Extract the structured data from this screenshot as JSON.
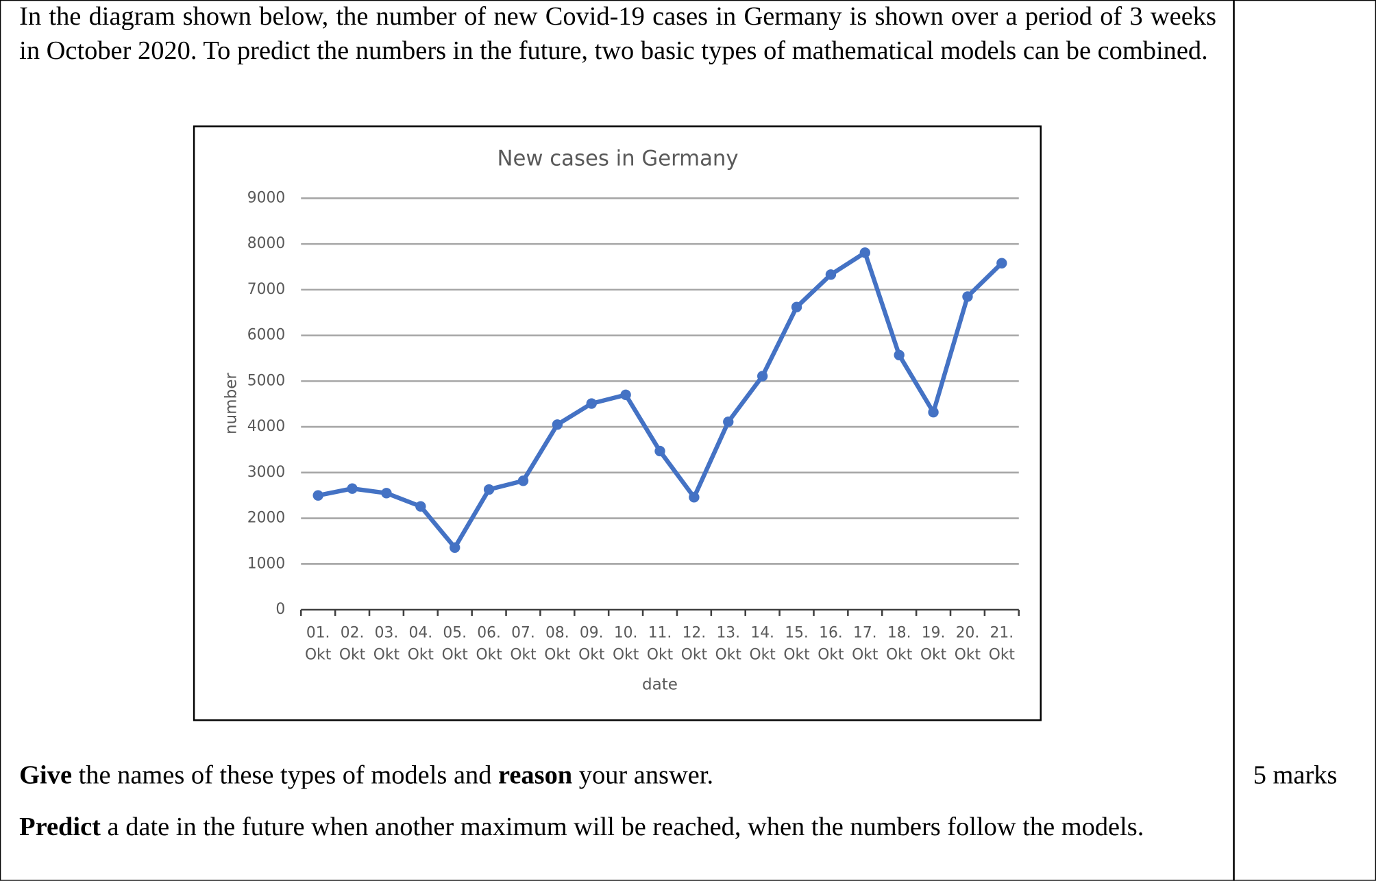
{
  "intro": "In the diagram shown below, the number of new Covid-19 cases in Germany is shown over a period of 3 weeks in October 2020.  To predict the numbers in the future, two basic types of mathematical models can be combined.",
  "chart_data": {
    "type": "line",
    "title": "New cases in Germany",
    "x_label": "date",
    "y_label": "number",
    "categories": [
      "01. Okt",
      "02. Okt",
      "03. Okt",
      "04. Okt",
      "05. Okt",
      "06. Okt",
      "07. Okt",
      "08. Okt",
      "09. Okt",
      "10. Okt",
      "11. Okt",
      "12. Okt",
      "13. Okt",
      "14. Okt",
      "15. Okt",
      "16. Okt",
      "17. Okt",
      "18. Okt",
      "19. Okt",
      "20. Okt",
      "21. Okt"
    ],
    "values": [
      2500,
      2650,
      2550,
      2260,
      1360,
      2630,
      2820,
      4050,
      4510,
      4700,
      3470,
      2460,
      4110,
      5110,
      6620,
      7330,
      7810,
      5570,
      4320,
      6850,
      7580
    ],
    "color": "#4472c4",
    "ylim": [
      0,
      9000
    ],
    "yticks": [
      0,
      1000,
      2000,
      3000,
      4000,
      5000,
      6000,
      7000,
      8000,
      9000
    ],
    "grid": true
  },
  "question": {
    "give_bold": "Give",
    "give_rest": "the names of these types of models and",
    "reason_bold": "reason",
    "reason_rest": "your answer.",
    "marks": "5 marks",
    "predict_bold": "Predict",
    "predict_rest": "a date in the future when another maximum will be reached, when the numbers follow the models."
  }
}
